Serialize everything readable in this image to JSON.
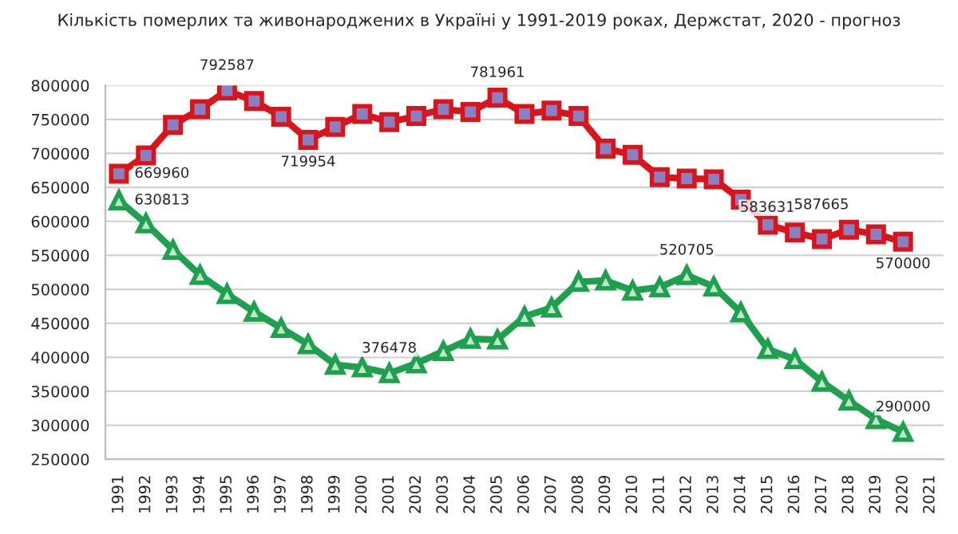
{
  "chart_data": {
    "type": "line",
    "title": "Кількість померлих та живонароджених в Україні у 1991-2019 роках, Держстат, 2020 - прогноз",
    "categories": [
      "1991",
      "1992",
      "1993",
      "1994",
      "1995",
      "1996",
      "1997",
      "1998",
      "1999",
      "2000",
      "2001",
      "2002",
      "2003",
      "2004",
      "2005",
      "2006",
      "2007",
      "2008",
      "2009",
      "2010",
      "2011",
      "2012",
      "2013",
      "2014",
      "2015",
      "2016",
      "2017",
      "2018",
      "2019",
      "2020",
      "2021"
    ],
    "series": [
      {
        "color": "#d9151b",
        "marker": "square",
        "values": [
          669960,
          697000,
          742000,
          765000,
          792587,
          777000,
          754000,
          719954,
          739000,
          758000,
          746000,
          755000,
          765000,
          761000,
          781961,
          758000,
          763000,
          755000,
          707000,
          698000,
          665000,
          663000,
          662000,
          632000,
          595000,
          583631,
          574000,
          587665,
          581000,
          570000,
          null
        ],
        "value_labels": [
          "669960",
          null,
          null,
          null,
          "792587",
          null,
          null,
          "719954",
          null,
          null,
          null,
          null,
          null,
          null,
          "781961",
          null,
          null,
          null,
          null,
          null,
          null,
          null,
          null,
          null,
          null,
          "583631",
          null,
          "587665",
          null,
          "570000",
          null
        ]
      },
      {
        "color": "#1ea04f",
        "marker": "triangle",
        "values": [
          630813,
          597000,
          558000,
          521000,
          493000,
          467000,
          443000,
          419000,
          389000,
          385000,
          376478,
          391000,
          409000,
          427000,
          426000,
          460000,
          473000,
          511000,
          513000,
          498000,
          503000,
          520705,
          504000,
          466000,
          412000,
          397000,
          364000,
          336000,
          309000,
          290000,
          null
        ],
        "value_labels": [
          "630813",
          null,
          null,
          null,
          null,
          null,
          null,
          null,
          null,
          null,
          "376478",
          null,
          null,
          null,
          null,
          null,
          null,
          null,
          null,
          null,
          null,
          "520705",
          null,
          null,
          null,
          null,
          null,
          null,
          null,
          "290000",
          null
        ]
      }
    ],
    "ylim": [
      250000,
      800000
    ],
    "yticks": [
      250000,
      300000,
      350000,
      400000,
      450000,
      500000,
      550000,
      600000,
      650000,
      700000,
      750000,
      800000
    ],
    "grid": "y",
    "legend": false,
    "line_style": "solid"
  }
}
